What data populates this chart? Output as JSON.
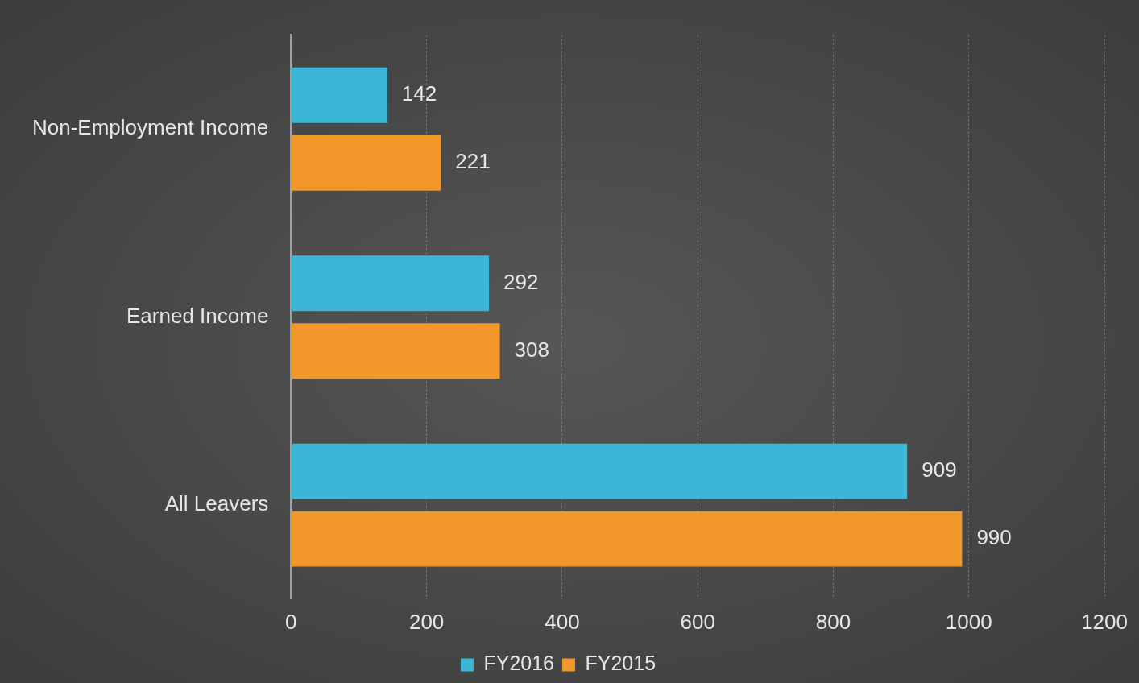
{
  "chart_data": {
    "type": "bar",
    "orientation": "horizontal",
    "categories": [
      "Non-Employment Income",
      "Earned Income",
      "All Leavers"
    ],
    "series": [
      {
        "name": "FY2016",
        "color": "#3cb6d6",
        "values": [
          142,
          292,
          909
        ]
      },
      {
        "name": "FY2015",
        "color": "#f2972c",
        "values": [
          221,
          308,
          990
        ]
      }
    ],
    "xlim": [
      0,
      1200
    ],
    "xticks": [
      0,
      200,
      400,
      600,
      800,
      1000,
      1200
    ],
    "grid": "x",
    "legend": "bottom",
    "data_labels": true
  }
}
